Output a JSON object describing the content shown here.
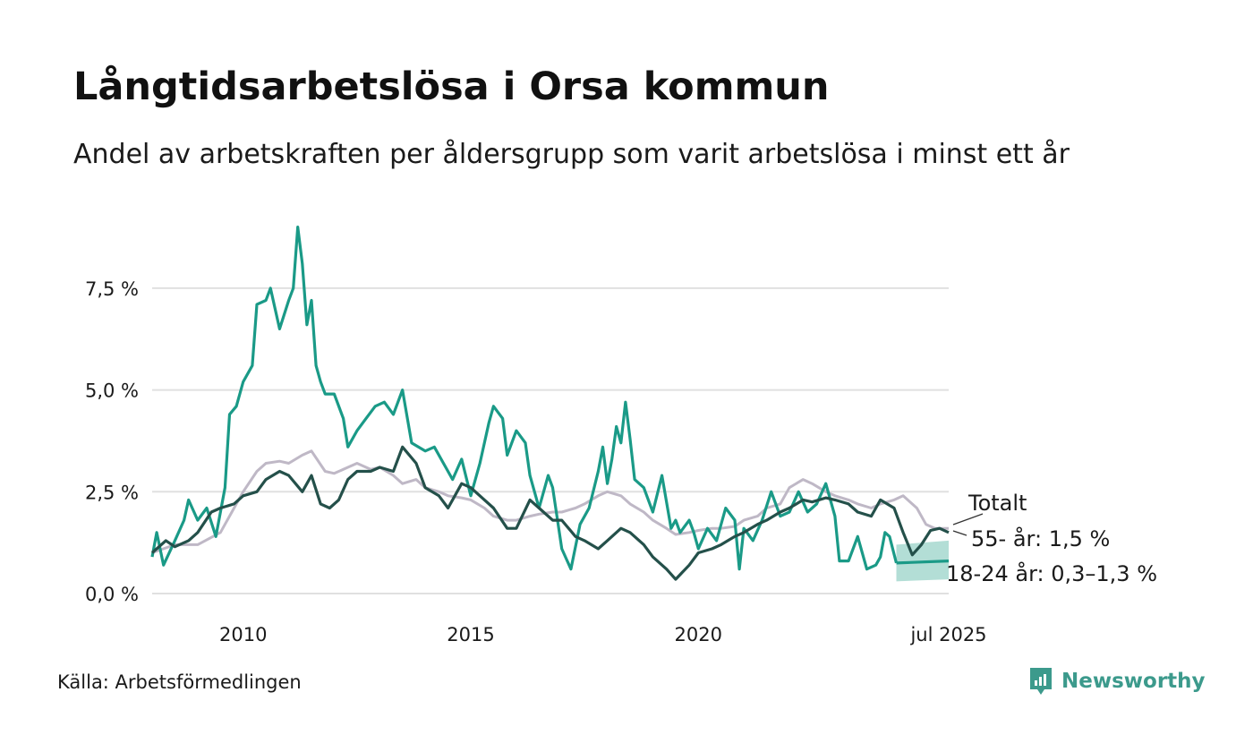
{
  "title": "Långtidsarbetslösa i Orsa kommun",
  "subtitle": "Andel av arbetskraften per åldersgrupp som varit arbetslösa i minst ett år",
  "source": "Källa: Arbetsförmedlingen",
  "brand": "Newsworthy",
  "colors": {
    "youth": "#1a9a87",
    "older": "#24504a",
    "total": "#bfb8c6",
    "band": "#a6d8cf",
    "grid": "#e0e0e0",
    "brand": "#3c9a8c"
  },
  "chart_data": {
    "type": "line",
    "x_range": [
      2008.0,
      2025.5
    ],
    "ylim": [
      0,
      9.3
    ],
    "y_ticks": [
      0,
      2.5,
      5,
      7.5
    ],
    "y_tick_labels": [
      "0,0 %",
      "2,5 %",
      "5,0 %",
      "7,5 %"
    ],
    "x_ticks": [
      2010,
      2015,
      2020,
      2025.5
    ],
    "x_tick_labels": [
      "2010",
      "2015",
      "2020",
      "jul 2025"
    ],
    "grid": "horizontal",
    "series": [
      {
        "name": "Totalt",
        "label": "Totalt",
        "points": [
          [
            2008.0,
            1.0
          ],
          [
            2008.5,
            1.2
          ],
          [
            2009.0,
            1.2
          ],
          [
            2009.5,
            1.5
          ],
          [
            2010.0,
            2.5
          ],
          [
            2010.3,
            3.0
          ],
          [
            2010.5,
            3.2
          ],
          [
            2010.8,
            3.25
          ],
          [
            2011.0,
            3.2
          ],
          [
            2011.3,
            3.4
          ],
          [
            2011.5,
            3.5
          ],
          [
            2011.8,
            3.0
          ],
          [
            2012.0,
            2.95
          ],
          [
            2012.3,
            3.1
          ],
          [
            2012.5,
            3.2
          ],
          [
            2012.8,
            3.05
          ],
          [
            2013.0,
            3.1
          ],
          [
            2013.3,
            2.9
          ],
          [
            2013.5,
            2.7
          ],
          [
            2013.8,
            2.8
          ],
          [
            2014.0,
            2.6
          ],
          [
            2014.3,
            2.5
          ],
          [
            2014.5,
            2.4
          ],
          [
            2014.8,
            2.35
          ],
          [
            2015.0,
            2.3
          ],
          [
            2015.3,
            2.1
          ],
          [
            2015.5,
            1.9
          ],
          [
            2015.8,
            1.8
          ],
          [
            2016.0,
            1.8
          ],
          [
            2016.3,
            1.9
          ],
          [
            2016.5,
            1.95
          ],
          [
            2016.8,
            2.0
          ],
          [
            2017.0,
            2.0
          ],
          [
            2017.3,
            2.1
          ],
          [
            2017.5,
            2.2
          ],
          [
            2017.8,
            2.4
          ],
          [
            2018.0,
            2.5
          ],
          [
            2018.3,
            2.4
          ],
          [
            2018.5,
            2.2
          ],
          [
            2018.8,
            2.0
          ],
          [
            2019.0,
            1.8
          ],
          [
            2019.3,
            1.6
          ],
          [
            2019.5,
            1.45
          ],
          [
            2019.8,
            1.5
          ],
          [
            2020.0,
            1.55
          ],
          [
            2020.3,
            1.6
          ],
          [
            2020.5,
            1.6
          ],
          [
            2020.8,
            1.65
          ],
          [
            2021.0,
            1.8
          ],
          [
            2021.3,
            1.9
          ],
          [
            2021.5,
            2.1
          ],
          [
            2021.8,
            2.2
          ],
          [
            2022.0,
            2.6
          ],
          [
            2022.3,
            2.8
          ],
          [
            2022.5,
            2.7
          ],
          [
            2022.8,
            2.5
          ],
          [
            2023.0,
            2.4
          ],
          [
            2023.3,
            2.3
          ],
          [
            2023.5,
            2.2
          ],
          [
            2023.8,
            2.1
          ],
          [
            2024.0,
            2.2
          ],
          [
            2024.3,
            2.3
          ],
          [
            2024.5,
            2.4
          ],
          [
            2024.8,
            2.1
          ],
          [
            2025.0,
            1.7
          ],
          [
            2025.2,
            1.6
          ],
          [
            2025.5,
            1.6
          ]
        ]
      },
      {
        "name": "55- år",
        "label": "55- år: 1,5 %",
        "points": [
          [
            2008.0,
            1.0
          ],
          [
            2008.3,
            1.3
          ],
          [
            2008.5,
            1.15
          ],
          [
            2008.8,
            1.3
          ],
          [
            2009.0,
            1.5
          ],
          [
            2009.3,
            2.0
          ],
          [
            2009.5,
            2.1
          ],
          [
            2009.8,
            2.2
          ],
          [
            2010.0,
            2.4
          ],
          [
            2010.3,
            2.5
          ],
          [
            2010.5,
            2.8
          ],
          [
            2010.8,
            3.0
          ],
          [
            2011.0,
            2.9
          ],
          [
            2011.3,
            2.5
          ],
          [
            2011.5,
            2.9
          ],
          [
            2011.7,
            2.2
          ],
          [
            2011.9,
            2.1
          ],
          [
            2012.1,
            2.3
          ],
          [
            2012.3,
            2.8
          ],
          [
            2012.5,
            3.0
          ],
          [
            2012.8,
            3.0
          ],
          [
            2013.0,
            3.1
          ],
          [
            2013.3,
            3.0
          ],
          [
            2013.5,
            3.6
          ],
          [
            2013.8,
            3.2
          ],
          [
            2014.0,
            2.6
          ],
          [
            2014.3,
            2.4
          ],
          [
            2014.5,
            2.1
          ],
          [
            2014.8,
            2.7
          ],
          [
            2015.0,
            2.6
          ],
          [
            2015.3,
            2.3
          ],
          [
            2015.5,
            2.1
          ],
          [
            2015.8,
            1.6
          ],
          [
            2016.0,
            1.6
          ],
          [
            2016.3,
            2.3
          ],
          [
            2016.5,
            2.1
          ],
          [
            2016.8,
            1.8
          ],
          [
            2017.0,
            1.8
          ],
          [
            2017.3,
            1.4
          ],
          [
            2017.5,
            1.3
          ],
          [
            2017.8,
            1.1
          ],
          [
            2018.0,
            1.3
          ],
          [
            2018.3,
            1.6
          ],
          [
            2018.5,
            1.5
          ],
          [
            2018.8,
            1.2
          ],
          [
            2019.0,
            0.9
          ],
          [
            2019.3,
            0.6
          ],
          [
            2019.5,
            0.35
          ],
          [
            2019.8,
            0.7
          ],
          [
            2020.0,
            1.0
          ],
          [
            2020.3,
            1.1
          ],
          [
            2020.5,
            1.2
          ],
          [
            2020.8,
            1.4
          ],
          [
            2021.0,
            1.5
          ],
          [
            2021.3,
            1.7
          ],
          [
            2021.5,
            1.8
          ],
          [
            2021.8,
            2.0
          ],
          [
            2022.0,
            2.1
          ],
          [
            2022.3,
            2.3
          ],
          [
            2022.5,
            2.25
          ],
          [
            2022.8,
            2.35
          ],
          [
            2023.0,
            2.3
          ],
          [
            2023.3,
            2.2
          ],
          [
            2023.5,
            2.0
          ],
          [
            2023.8,
            1.9
          ],
          [
            2024.0,
            2.3
          ],
          [
            2024.3,
            2.1
          ],
          [
            2024.5,
            1.5
          ],
          [
            2024.7,
            0.95
          ],
          [
            2024.9,
            1.2
          ],
          [
            2025.1,
            1.55
          ],
          [
            2025.3,
            1.6
          ],
          [
            2025.5,
            1.5
          ]
        ]
      },
      {
        "name": "18-24 år",
        "label": "18-24 år: 0,3–1,3 %",
        "points": [
          [
            2008.0,
            0.9
          ],
          [
            2008.1,
            1.5
          ],
          [
            2008.25,
            0.7
          ],
          [
            2008.5,
            1.3
          ],
          [
            2008.7,
            1.8
          ],
          [
            2008.8,
            2.3
          ],
          [
            2009.0,
            1.8
          ],
          [
            2009.2,
            2.1
          ],
          [
            2009.4,
            1.4
          ],
          [
            2009.6,
            2.6
          ],
          [
            2009.7,
            4.4
          ],
          [
            2009.85,
            4.6
          ],
          [
            2010.0,
            5.2
          ],
          [
            2010.2,
            5.6
          ],
          [
            2010.3,
            7.1
          ],
          [
            2010.5,
            7.2
          ],
          [
            2010.6,
            7.5
          ],
          [
            2010.7,
            7.0
          ],
          [
            2010.8,
            6.5
          ],
          [
            2011.0,
            7.2
          ],
          [
            2011.1,
            7.5
          ],
          [
            2011.2,
            9.0
          ],
          [
            2011.3,
            8.1
          ],
          [
            2011.4,
            6.6
          ],
          [
            2011.5,
            7.2
          ],
          [
            2011.6,
            5.6
          ],
          [
            2011.7,
            5.2
          ],
          [
            2011.8,
            4.9
          ],
          [
            2012.0,
            4.9
          ],
          [
            2012.2,
            4.3
          ],
          [
            2012.3,
            3.6
          ],
          [
            2012.5,
            4.0
          ],
          [
            2012.7,
            4.3
          ],
          [
            2012.9,
            4.6
          ],
          [
            2013.1,
            4.7
          ],
          [
            2013.3,
            4.4
          ],
          [
            2013.5,
            5.0
          ],
          [
            2013.7,
            3.7
          ],
          [
            2014.0,
            3.5
          ],
          [
            2014.2,
            3.6
          ],
          [
            2014.4,
            3.2
          ],
          [
            2014.6,
            2.8
          ],
          [
            2014.8,
            3.3
          ],
          [
            2015.0,
            2.4
          ],
          [
            2015.2,
            3.2
          ],
          [
            2015.4,
            4.2
          ],
          [
            2015.5,
            4.6
          ],
          [
            2015.7,
            4.3
          ],
          [
            2015.8,
            3.4
          ],
          [
            2016.0,
            4.0
          ],
          [
            2016.2,
            3.7
          ],
          [
            2016.3,
            2.9
          ],
          [
            2016.5,
            2.1
          ],
          [
            2016.7,
            2.9
          ],
          [
            2016.8,
            2.6
          ],
          [
            2017.0,
            1.1
          ],
          [
            2017.2,
            0.6
          ],
          [
            2017.4,
            1.7
          ],
          [
            2017.6,
            2.1
          ],
          [
            2017.8,
            3.0
          ],
          [
            2017.9,
            3.6
          ],
          [
            2018.0,
            2.7
          ],
          [
            2018.1,
            3.3
          ],
          [
            2018.2,
            4.1
          ],
          [
            2018.3,
            3.7
          ],
          [
            2018.4,
            4.7
          ],
          [
            2018.5,
            3.8
          ],
          [
            2018.6,
            2.8
          ],
          [
            2018.8,
            2.6
          ],
          [
            2019.0,
            2.0
          ],
          [
            2019.2,
            2.9
          ],
          [
            2019.4,
            1.6
          ],
          [
            2019.5,
            1.8
          ],
          [
            2019.6,
            1.5
          ],
          [
            2019.8,
            1.8
          ],
          [
            2019.9,
            1.5
          ],
          [
            2020.0,
            1.1
          ],
          [
            2020.2,
            1.6
          ],
          [
            2020.4,
            1.3
          ],
          [
            2020.6,
            2.1
          ],
          [
            2020.8,
            1.8
          ],
          [
            2020.9,
            0.6
          ],
          [
            2021.0,
            1.6
          ],
          [
            2021.2,
            1.3
          ],
          [
            2021.4,
            1.8
          ],
          [
            2021.6,
            2.5
          ],
          [
            2021.8,
            1.9
          ],
          [
            2022.0,
            2.0
          ],
          [
            2022.2,
            2.5
          ],
          [
            2022.4,
            2.0
          ],
          [
            2022.6,
            2.2
          ],
          [
            2022.8,
            2.7
          ],
          [
            2023.0,
            1.9
          ],
          [
            2023.1,
            0.8
          ],
          [
            2023.3,
            0.8
          ],
          [
            2023.5,
            1.4
          ],
          [
            2023.7,
            0.6
          ],
          [
            2023.9,
            0.7
          ],
          [
            2024.0,
            0.9
          ],
          [
            2024.1,
            1.5
          ],
          [
            2024.2,
            1.4
          ],
          [
            2024.35,
            0.75
          ]
        ],
        "forecast": {
          "label": "18-24 år: 0,3–1,3 %",
          "points": [
            [
              2024.35,
              0.75
            ],
            [
              2025.5,
              0.8
            ]
          ],
          "band": [
            [
              2024.35,
              0.3,
              1.2
            ],
            [
              2025.5,
              0.35,
              1.3
            ]
          ]
        }
      }
    ]
  }
}
